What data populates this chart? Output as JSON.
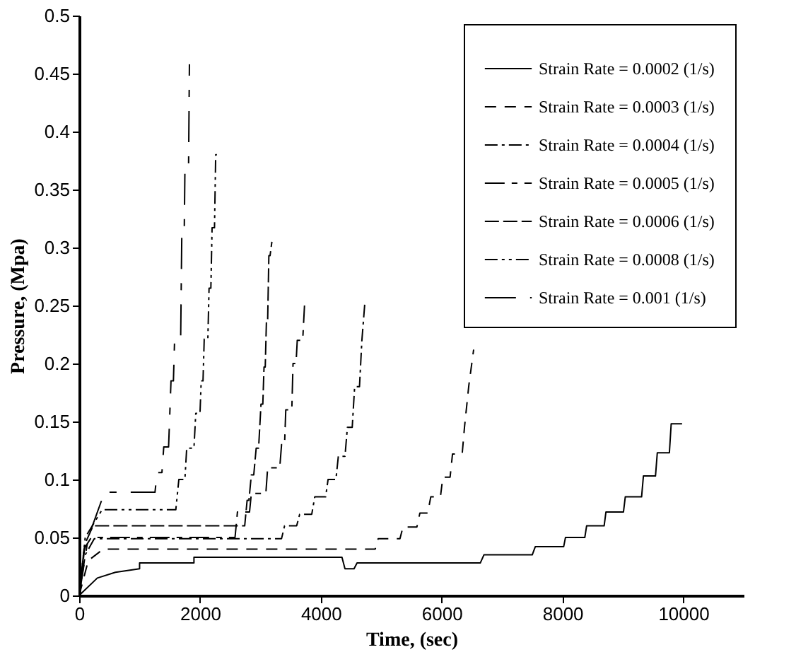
{
  "chart_data": {
    "type": "line",
    "xlabel": "Time, (sec)",
    "ylabel": "Pressure, (Mpa)",
    "xlim": [
      0,
      11000
    ],
    "xticks": [
      0,
      2000,
      4000,
      6000,
      8000,
      10000
    ],
    "ylim": [
      0,
      0.5
    ],
    "yticks": [
      0,
      0.05,
      0.1,
      0.15,
      0.2,
      0.25,
      0.3,
      0.35,
      0.4,
      0.45,
      0.5
    ],
    "grid": false,
    "legend": "top right",
    "marker": "none",
    "series": [
      {
        "name": "Strain Rate = 0.0002 (1/s)",
        "color": "#000000",
        "line_style": "solid",
        "x": [
          0,
          300,
          600,
          1000,
          1000,
          1900,
          1900,
          4350,
          4400,
          4550,
          4600,
          6640,
          6700,
          7500,
          7550,
          8020,
          8050,
          8370,
          8400,
          8690,
          8720,
          9010,
          9040,
          9310,
          9340,
          9540,
          9570,
          9770,
          9800,
          9980
        ],
        "values": [
          0,
          0.015,
          0.02,
          0.023,
          0.028,
          0.028,
          0.033,
          0.033,
          0.023,
          0.023,
          0.028,
          0.028,
          0.035,
          0.035,
          0.042,
          0.042,
          0.05,
          0.05,
          0.06,
          0.06,
          0.072,
          0.072,
          0.085,
          0.085,
          0.103,
          0.103,
          0.123,
          0.123,
          0.148,
          0.148
        ]
      },
      {
        "name": "Strain Rate = 0.0003 (1/s)",
        "color": "#000000",
        "line_style": "dashed",
        "x": [
          0,
          150,
          400,
          4900,
          4950,
          5310,
          5360,
          5590,
          5640,
          5770,
          5820,
          5980,
          6020,
          6140,
          6180,
          6340,
          6380,
          6450,
          6530
        ],
        "values": [
          0,
          0.03,
          0.04,
          0.04,
          0.049,
          0.049,
          0.059,
          0.059,
          0.071,
          0.071,
          0.085,
          0.085,
          0.102,
          0.102,
          0.122,
          0.122,
          0.146,
          0.181,
          0.212
        ]
      },
      {
        "name": "Strain Rate = 0.0004 (1/s)",
        "color": "#000000",
        "line_style": "dashdot",
        "x": [
          0,
          100,
          250,
          3350,
          3400,
          3600,
          3650,
          3850,
          3900,
          4080,
          4120,
          4250,
          4290,
          4400,
          4440,
          4520,
          4560,
          4640,
          4680,
          4730
        ],
        "values": [
          0,
          0.035,
          0.049,
          0.049,
          0.06,
          0.06,
          0.07,
          0.07,
          0.085,
          0.085,
          0.1,
          0.1,
          0.12,
          0.12,
          0.145,
          0.145,
          0.18,
          0.18,
          0.22,
          0.253
        ]
      },
      {
        "name": "Strain Rate = 0.0005 (1/s)",
        "color": "#000000",
        "line_style": "longshort",
        "x": [
          0,
          80,
          200,
          2580,
          2620,
          2820,
          2850,
          3090,
          3120,
          3320,
          3350,
          3400,
          3420,
          3520,
          3540,
          3590,
          3610,
          3700,
          3730
        ],
        "values": [
          0,
          0.04,
          0.05,
          0.05,
          0.072,
          0.072,
          0.088,
          0.088,
          0.11,
          0.11,
          0.13,
          0.13,
          0.16,
          0.16,
          0.2,
          0.2,
          0.22,
          0.22,
          0.25
        ]
      },
      {
        "name": "Strain Rate = 0.0006 (1/s)",
        "color": "#000000",
        "line_style": "longdash",
        "x": [
          0,
          100,
          230,
          2740,
          2780,
          2810,
          2850,
          2890,
          2930,
          2970,
          3010,
          3040,
          3060,
          3080,
          3100,
          3120,
          3140,
          3160,
          3190
        ],
        "values": [
          0,
          0.045,
          0.06,
          0.06,
          0.082,
          0.082,
          0.104,
          0.104,
          0.127,
          0.127,
          0.165,
          0.165,
          0.197,
          0.197,
          0.237,
          0.237,
          0.293,
          0.293,
          0.305
        ]
      },
      {
        "name": "Strain Rate = 0.0008 (1/s)",
        "color": "#000000",
        "line_style": "dashdotdot",
        "x": [
          0,
          100,
          380,
          1600,
          1650,
          1750,
          1780,
          1900,
          1930,
          2000,
          2020,
          2050,
          2070,
          2130,
          2150,
          2180,
          2200,
          2240,
          2260,
          2280
        ],
        "values": [
          0,
          0.05,
          0.074,
          0.074,
          0.1,
          0.1,
          0.127,
          0.127,
          0.157,
          0.157,
          0.185,
          0.185,
          0.221,
          0.221,
          0.265,
          0.265,
          0.317,
          0.317,
          0.38,
          0.38
        ]
      },
      {
        "name": "Strain Rate = 0.001 (1/s)",
        "color": "#000000",
        "line_style": "longgap",
        "x": [
          0,
          150,
          420,
          720,
          1255,
          1290,
          1370,
          1400,
          1480,
          1520,
          1560,
          1580,
          1680,
          1700,
          1740,
          1750,
          1810,
          1825
        ],
        "values": [
          0,
          0.05,
          0.089,
          0.089,
          0.089,
          0.106,
          0.106,
          0.128,
          0.128,
          0.185,
          0.185,
          0.221,
          0.221,
          0.317,
          0.317,
          0.365,
          0.365,
          0.458
        ]
      }
    ]
  }
}
